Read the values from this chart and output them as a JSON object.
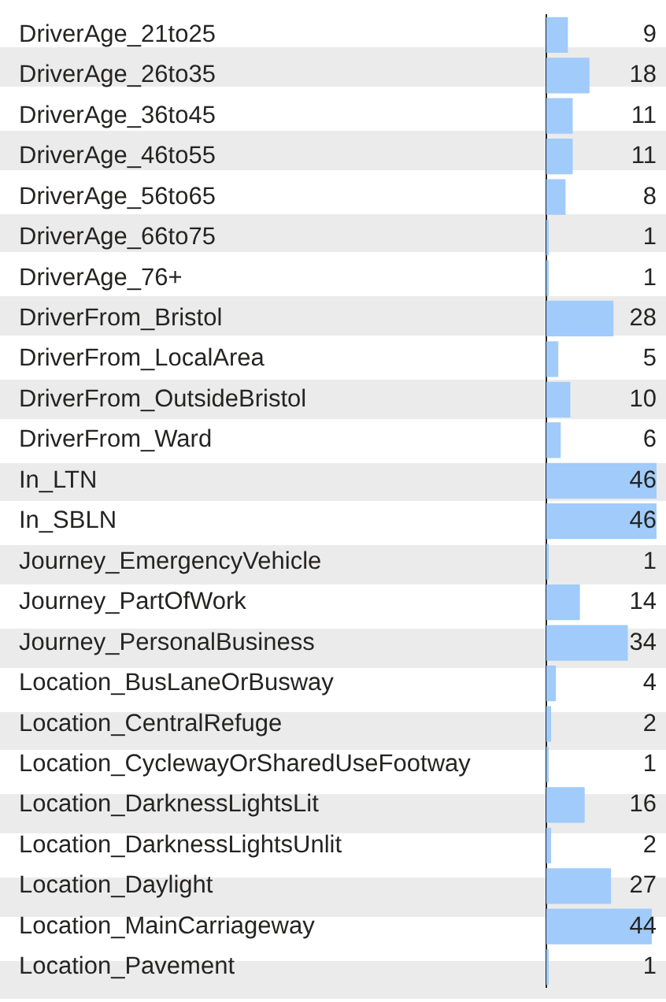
{
  "chart_data": {
    "type": "bar",
    "orientation": "horizontal",
    "categories": [
      "DriverAge_21to25",
      "DriverAge_26to35",
      "DriverAge_36to45",
      "DriverAge_46to55",
      "DriverAge_56to65",
      "DriverAge_66to75",
      "DriverAge_76+",
      "DriverFrom_Bristol",
      "DriverFrom_LocalArea",
      "DriverFrom_OutsideBristol",
      "DriverFrom_Ward",
      "In_LTN",
      "In_SBLN",
      "Journey_EmergencyVehicle",
      "Journey_PartOfWork",
      "Journey_PersonalBusiness",
      "Location_BusLaneOrBusway",
      "Location_CentralRefuge",
      "Location_CyclewayOrSharedUseFootway",
      "Location_DarknessLightsLit",
      "Location_DarknessLightsUnlit",
      "Location_Daylight",
      "Location_MainCarriageway",
      "Location_Pavement"
    ],
    "values": [
      9,
      18,
      11,
      11,
      8,
      1,
      1,
      28,
      5,
      10,
      6,
      46,
      46,
      1,
      14,
      34,
      4,
      2,
      1,
      16,
      2,
      27,
      44,
      1
    ],
    "color": "#a0cbfa",
    "xlim": [
      0,
      46
    ],
    "data_labels": true,
    "tick_labels": "y",
    "grid": false,
    "legend": false
  }
}
